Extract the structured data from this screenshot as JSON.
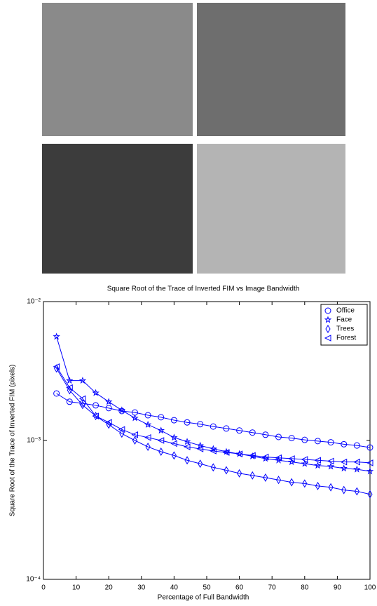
{
  "chart_data": {
    "type": "line",
    "title": "Square Root of the Trace of Inverted FIM vs Image Bandwidth",
    "xlabel": "Percentage of Full Bandwidth",
    "ylabel": "Square Root of the Trace of Inverted FIM (pixels)",
    "x": [
      4,
      8,
      12,
      16,
      20,
      24,
      28,
      32,
      36,
      40,
      44,
      48,
      52,
      56,
      60,
      64,
      68,
      72,
      76,
      80,
      84,
      88,
      92,
      96,
      100
    ],
    "series": [
      {
        "name": "Office",
        "color": "#0000ff",
        "marker": "circle",
        "values": [
          0.00218,
          0.0019,
          0.00185,
          0.00179,
          0.00171,
          0.00163,
          0.00159,
          0.00152,
          0.00147,
          0.0014,
          0.00135,
          0.00131,
          0.00126,
          0.00122,
          0.00118,
          0.00114,
          0.0011,
          0.00106,
          0.00104,
          0.00101,
          0.00099,
          0.00097,
          0.00094,
          0.00092,
          0.00089
        ]
      },
      {
        "name": "Face",
        "color": "#0000ff",
        "marker": "star",
        "values": [
          0.0056,
          0.0027,
          0.0027,
          0.0022,
          0.0019,
          0.00165,
          0.00145,
          0.0013,
          0.00118,
          0.00105,
          0.00098,
          0.00092,
          0.00087,
          0.00083,
          0.0008,
          0.00077,
          0.00074,
          0.00072,
          0.0007,
          0.00068,
          0.00066,
          0.00065,
          0.00063,
          0.00062,
          0.0006
        ]
      },
      {
        "name": "Trees",
        "color": "#0000ff",
        "marker": "diamond",
        "values": [
          0.0033,
          0.0023,
          0.0018,
          0.0015,
          0.0013,
          0.00112,
          0.001,
          0.0009,
          0.00083,
          0.00078,
          0.00072,
          0.00068,
          0.00064,
          0.00061,
          0.00058,
          0.00056,
          0.00054,
          0.00052,
          0.0005,
          0.00049,
          0.00047,
          0.00046,
          0.00044,
          0.00043,
          0.00041
        ]
      },
      {
        "name": "Forest",
        "color": "#0000ff",
        "marker": "triangle-left",
        "values": [
          0.0034,
          0.0024,
          0.002,
          0.0015,
          0.00135,
          0.0012,
          0.0011,
          0.00105,
          0.001,
          0.00095,
          0.0009,
          0.00087,
          0.00084,
          0.00082,
          0.0008,
          0.00078,
          0.00076,
          0.00075,
          0.00074,
          0.00073,
          0.00072,
          0.00071,
          0.0007,
          0.0007,
          0.00069
        ]
      }
    ],
    "xlim": [
      0,
      100
    ],
    "xticks": [
      0,
      10,
      20,
      30,
      40,
      50,
      60,
      70,
      80,
      90,
      100
    ],
    "ylim": [
      0.0001,
      0.01
    ],
    "yscale": "log",
    "yticks": [
      {
        "value": 0.0001,
        "label": "10⁻⁴"
      },
      {
        "value": 0.001,
        "label": "10⁻³"
      },
      {
        "value": 0.01,
        "label": "10⁻²"
      }
    ],
    "legend": "upper right",
    "grid": false
  }
}
